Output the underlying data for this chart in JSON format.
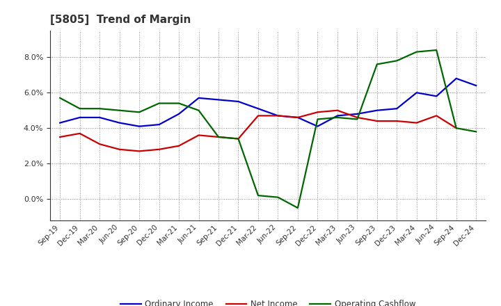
{
  "title": "[5805]  Trend of Margin",
  "labels": [
    "Sep-19",
    "Dec-19",
    "Mar-20",
    "Jun-20",
    "Sep-20",
    "Dec-20",
    "Mar-21",
    "Jun-21",
    "Sep-21",
    "Dec-21",
    "Mar-22",
    "Jun-22",
    "Sep-22",
    "Dec-22",
    "Mar-23",
    "Jun-23",
    "Sep-23",
    "Dec-23",
    "Mar-24",
    "Jun-24",
    "Sep-24",
    "Dec-24"
  ],
  "ordinary_income": [
    4.3,
    4.6,
    4.6,
    4.3,
    4.1,
    4.2,
    4.8,
    5.7,
    5.6,
    5.5,
    5.1,
    4.7,
    4.6,
    4.1,
    4.7,
    4.8,
    5.0,
    5.1,
    6.0,
    5.8,
    6.8,
    6.4
  ],
  "net_income": [
    3.5,
    3.7,
    3.1,
    2.8,
    2.7,
    2.8,
    3.0,
    3.6,
    3.5,
    3.4,
    4.7,
    4.7,
    4.6,
    4.9,
    5.0,
    4.6,
    4.4,
    4.4,
    4.3,
    4.7,
    4.0,
    null
  ],
  "operating_cashflow": [
    5.7,
    5.1,
    5.1,
    5.0,
    4.9,
    5.4,
    5.4,
    5.0,
    3.5,
    3.4,
    0.2,
    0.1,
    -0.5,
    4.5,
    4.6,
    4.5,
    7.6,
    7.8,
    8.3,
    8.4,
    4.0,
    3.8
  ],
  "colors": {
    "ordinary_income": "#0000cc",
    "net_income": "#cc0000",
    "operating_cashflow": "#006600"
  },
  "ylim": [
    -1.2,
    9.5
  ],
  "yticks": [
    0.0,
    2.0,
    4.0,
    6.0,
    8.0
  ],
  "background_color": "#ffffff",
  "grid_color": "#888888",
  "title_color": "#333333",
  "tick_color": "#333333"
}
